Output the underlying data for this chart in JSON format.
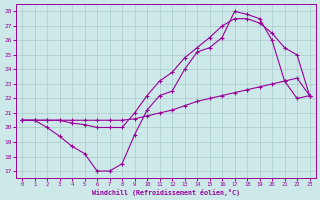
{
  "xlabel": "Windchill (Refroidissement éolien,°C)",
  "xlim": [
    -0.5,
    23.5
  ],
  "ylim": [
    16.5,
    28.5
  ],
  "xticks": [
    0,
    1,
    2,
    3,
    4,
    5,
    6,
    7,
    8,
    9,
    10,
    11,
    12,
    13,
    14,
    15,
    16,
    17,
    18,
    19,
    20,
    21,
    22,
    23
  ],
  "yticks": [
    17,
    18,
    19,
    20,
    21,
    22,
    23,
    24,
    25,
    26,
    27,
    28
  ],
  "bg": "#cce8e8",
  "lc": "#990099",
  "gc": "#aacccc",
  "line1_x": [
    0,
    1,
    2,
    3,
    4,
    5,
    6,
    7,
    8,
    9,
    10,
    11,
    12,
    13,
    14,
    15,
    16,
    17,
    18,
    19,
    20,
    21,
    22,
    23
  ],
  "line1_y": [
    20.5,
    20.5,
    20.0,
    19.4,
    18.7,
    18.2,
    17.0,
    17.0,
    17.5,
    19.5,
    21.2,
    22.2,
    22.5,
    24.0,
    25.2,
    25.5,
    26.2,
    28.0,
    27.8,
    27.5,
    26.0,
    23.2,
    22.0,
    22.2
  ],
  "line2_x": [
    0,
    1,
    2,
    3,
    4,
    5,
    6,
    7,
    8,
    9,
    10,
    11,
    12,
    13,
    14,
    15,
    16,
    17,
    18,
    19,
    20,
    21,
    22,
    23
  ],
  "line2_y": [
    20.5,
    20.5,
    20.5,
    20.5,
    20.5,
    20.5,
    20.5,
    20.5,
    20.5,
    20.6,
    20.8,
    21.0,
    21.2,
    21.5,
    21.8,
    22.0,
    22.2,
    22.4,
    22.6,
    22.8,
    23.0,
    23.2,
    23.4,
    22.2
  ],
  "line3_x": [
    0,
    1,
    2,
    3,
    4,
    5,
    6,
    7,
    8,
    9,
    10,
    11,
    12,
    13,
    14,
    15,
    16,
    17,
    18,
    19,
    20,
    21,
    22,
    23
  ],
  "line3_y": [
    20.5,
    20.5,
    20.5,
    20.5,
    20.3,
    20.2,
    20.0,
    20.0,
    20.0,
    21.0,
    22.2,
    23.2,
    23.8,
    24.8,
    25.5,
    26.2,
    27.0,
    27.5,
    27.5,
    27.2,
    26.5,
    25.5,
    25.0,
    22.2
  ]
}
